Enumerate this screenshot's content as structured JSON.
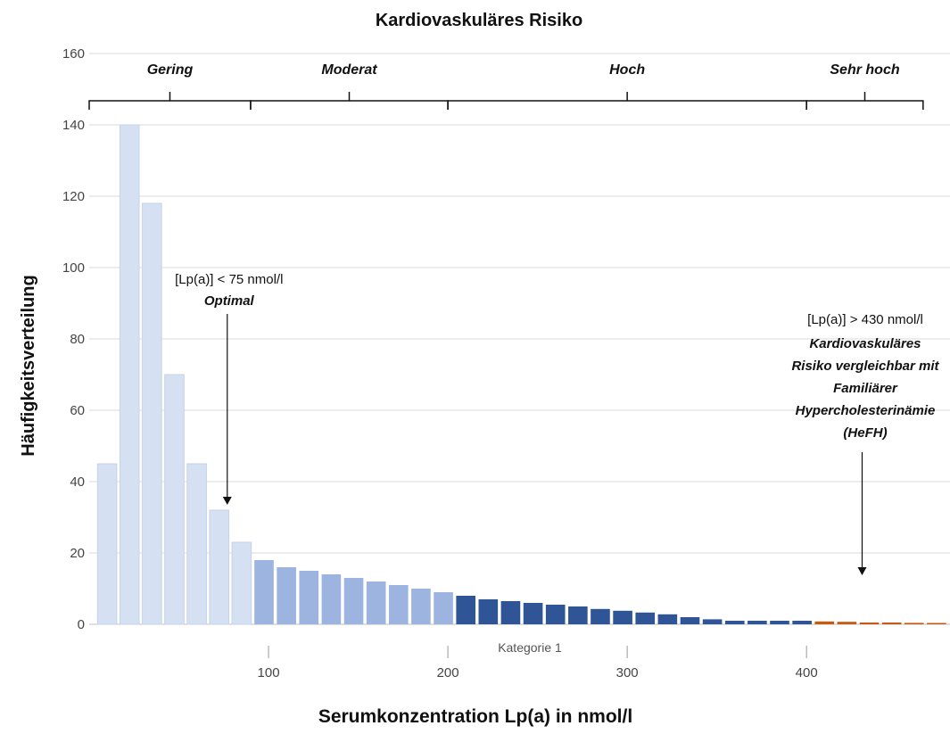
{
  "chart_data": {
    "type": "bar",
    "title": "Kardiovaskuläres Risiko",
    "xlabel": "Serumkonzentration Lp(a) in nmol/l",
    "ylabel": "Häufigkeitsverteilung",
    "category_label": "Kategorie 1",
    "ylim": [
      0,
      160
    ],
    "yticks": [
      0,
      20,
      40,
      60,
      80,
      100,
      120,
      140,
      160
    ],
    "xlim": [
      0,
      480
    ],
    "xticks": [
      100,
      200,
      300,
      400
    ],
    "grid": true,
    "x": [
      10,
      22.5,
      35,
      47.5,
      60,
      72.5,
      85,
      97.5,
      110,
      122.5,
      135,
      147.5,
      160,
      172.5,
      185,
      197.5,
      210,
      222.5,
      235,
      247.5,
      260,
      272.5,
      285,
      297.5,
      310,
      322.5,
      335,
      347.5,
      360,
      372.5,
      385,
      397.5,
      410,
      422.5,
      435,
      447.5,
      460,
      472.5
    ],
    "values": [
      45,
      140,
      118,
      70,
      45,
      32,
      23,
      18,
      16,
      15,
      14,
      13,
      12,
      11,
      10,
      9,
      8,
      7,
      6.5,
      6,
      5.5,
      5,
      4.3,
      3.8,
      3.3,
      2.8,
      2,
      1.4,
      1,
      1,
      1,
      1,
      0.8,
      0.7,
      0.5,
      0.5,
      0.4,
      0.3
    ],
    "risk_zones": [
      {
        "label": "Gering",
        "from": 0,
        "to": 90
      },
      {
        "label": "Moderat",
        "from": 90,
        "to": 200
      },
      {
        "label": "Hoch",
        "from": 200,
        "to": 400
      },
      {
        "label": "Sehr hoch",
        "from": 400,
        "to": 465
      }
    ],
    "annotations": [
      {
        "x": 75,
        "y": 32,
        "lines": [
          "[Lp(a)] < 75 nmol/l",
          "Optimal"
        ]
      },
      {
        "x": 430,
        "y": 12,
        "lines": [
          "[Lp(a)] > 430 nmol/l",
          "Kardiovaskuläres",
          "Risiko vergleichbar mit",
          "Familiärer",
          "Hypercholesterinämie",
          "(HeFH)"
        ]
      }
    ],
    "colors": {
      "gering": "#d5e1f2",
      "moderat": "#9db3e0",
      "hoch": "#2f5597",
      "sehr_hoch": "#c55a11",
      "grid": "#d9d9d9"
    }
  }
}
